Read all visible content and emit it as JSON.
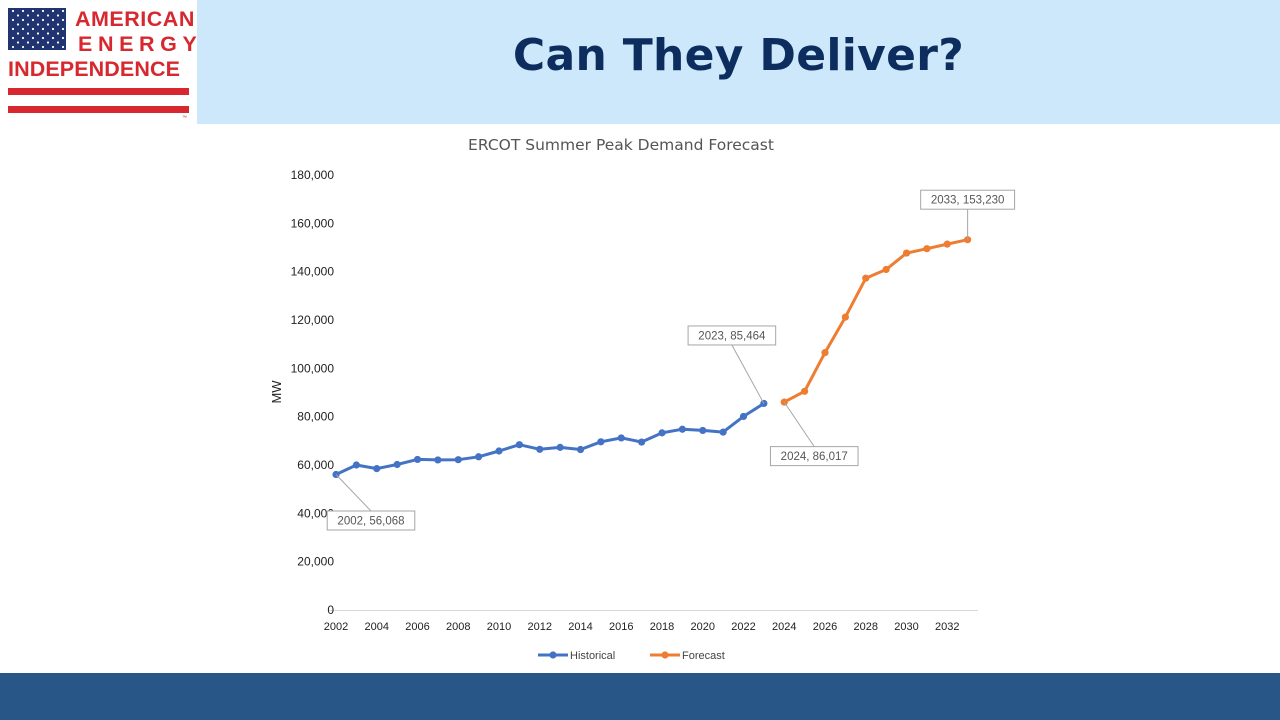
{
  "header": {
    "title": "Can They Deliver?",
    "logo": {
      "line1": "AMERICAN",
      "line2": "ENERGY",
      "line3": "INDEPENDENCE",
      "trademark": "™",
      "colors": {
        "red": "#d7282f",
        "blue": "#1f3470"
      }
    },
    "band_color": "#cce8fa"
  },
  "footer": {
    "band_color": "#285686"
  },
  "chart_data": {
    "type": "line",
    "title": "ERCOT Summer Peak Demand Forecast",
    "xlabel": "",
    "ylabel": "MW",
    "xlim": [
      2002,
      2034
    ],
    "ylim": [
      0,
      180000
    ],
    "x_ticks": [
      2002,
      2004,
      2006,
      2008,
      2010,
      2012,
      2014,
      2016,
      2018,
      2020,
      2022,
      2024,
      2026,
      2028,
      2030,
      2032
    ],
    "y_ticks": [
      0,
      20000,
      40000,
      60000,
      80000,
      100000,
      120000,
      140000,
      160000,
      180000
    ],
    "y_tick_labels": [
      "0",
      "20,000",
      "40,000",
      "60,000",
      "80,000",
      "100,000",
      "120,000",
      "140,000",
      "160,000",
      "180,000"
    ],
    "grid": false,
    "legend": "bottom",
    "series": [
      {
        "name": "Historical",
        "color": "#4472c4",
        "x": [
          2002,
          2003,
          2004,
          2005,
          2006,
          2007,
          2008,
          2009,
          2010,
          2011,
          2012,
          2013,
          2014,
          2015,
          2016,
          2017,
          2018,
          2019,
          2020,
          2021,
          2022,
          2023
        ],
        "y": [
          56068,
          60000,
          58500,
          60200,
          62300,
          62100,
          62200,
          63400,
          65800,
          68400,
          66500,
          67300,
          66400,
          69600,
          71200,
          69500,
          73300,
          74800,
          74300,
          73600,
          80100,
          85464
        ]
      },
      {
        "name": "Forecast",
        "color": "#ed7d31",
        "x": [
          2024,
          2025,
          2026,
          2027,
          2028,
          2029,
          2030,
          2031,
          2032,
          2033
        ],
        "y": [
          86017,
          90500,
          106500,
          121200,
          137300,
          140900,
          147700,
          149500,
          151400,
          153230
        ]
      }
    ],
    "annotations": [
      {
        "text": "2002, 56,068",
        "x": 2002,
        "y": 56068
      },
      {
        "text": "2023, 85,464",
        "x": 2023,
        "y": 85464
      },
      {
        "text": "2024, 86,017",
        "x": 2024,
        "y": 86017
      },
      {
        "text": "2033, 153,230",
        "x": 2033,
        "y": 153230
      }
    ]
  }
}
